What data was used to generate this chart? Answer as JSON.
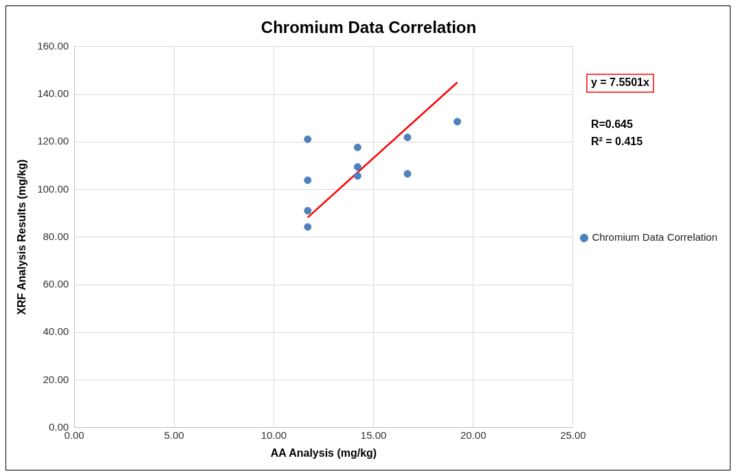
{
  "chart_data": {
    "type": "scatter",
    "title": "Chromium Data Correlation",
    "xlabel": "AA Analysis (mg/kg)",
    "ylabel": "XRF Analysis Results (mg/kg)",
    "series": [
      {
        "name": "Chromium Data Correlation",
        "color": "#4f81bd",
        "x": [
          11.7,
          11.7,
          11.7,
          11.7,
          14.2,
          14.2,
          14.2,
          16.7,
          16.7,
          19.2
        ],
        "values": [
          121.1,
          103.9,
          91.1,
          84.3,
          117.7,
          109.5,
          105.7,
          121.9,
          106.6,
          128.5
        ]
      },
      {
        "type": "line",
        "color": "#ff0000",
        "x": [
          11.7,
          19.2
        ],
        "values": [
          88.3,
          145.0
        ],
        "marker": "none"
      }
    ],
    "xlim": [
      0,
      25
    ],
    "xticks": [
      {
        "value": 0,
        "label": "0.00"
      },
      {
        "value": 5,
        "label": "5.00"
      },
      {
        "value": 10,
        "label": "10.00"
      },
      {
        "value": 15,
        "label": "15.00"
      },
      {
        "value": 20,
        "label": "20.00"
      },
      {
        "value": 25,
        "label": "25.00"
      }
    ],
    "ylim": [
      0,
      160
    ],
    "yticks": [
      {
        "value": 0,
        "label": "0.00"
      },
      {
        "value": 20,
        "label": "20.00"
      },
      {
        "value": 40,
        "label": "40.00"
      },
      {
        "value": 60,
        "label": "60.00"
      },
      {
        "value": 80,
        "label": "80.00"
      },
      {
        "value": 100,
        "label": "100.00"
      },
      {
        "value": 120,
        "label": "120.00"
      },
      {
        "value": 140,
        "label": "140.00"
      },
      {
        "value": 160,
        "label": "160.00"
      }
    ],
    "annotations": [
      "y = 7.5501x",
      "R=0.645",
      "R² = 0.415"
    ],
    "grid": true,
    "legend": "right",
    "marker": "circle"
  }
}
